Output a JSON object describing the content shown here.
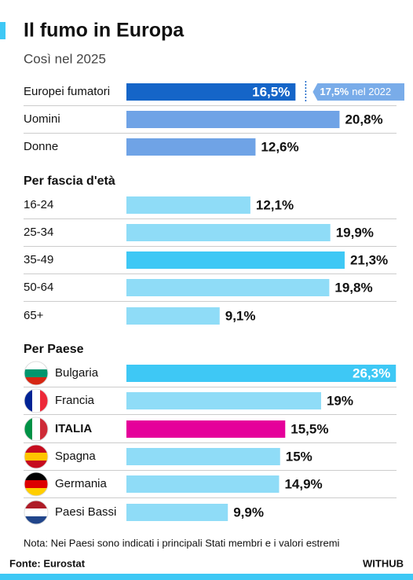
{
  "chart_data": {
    "type": "bar",
    "title": "Il fumo in Europa",
    "subtitle": "Così nel 2025",
    "sections": [
      {
        "categories": [
          "Europei fumatori",
          "Uomini",
          "Donne"
        ],
        "values": [
          16.5,
          20.8,
          12.6
        ],
        "value_labels": [
          "16,5%",
          "20,8%",
          "12,6%"
        ],
        "colors": [
          "#1565c8",
          "#6fa3e6",
          "#6fa3e6"
        ]
      },
      {
        "title": "Per fascia d'età",
        "categories": [
          "16-24",
          "25-34",
          "35-49",
          "50-64",
          "65+"
        ],
        "values": [
          12.1,
          19.9,
          21.3,
          19.8,
          9.1
        ],
        "value_labels": [
          "12,1%",
          "19,9%",
          "21,3%",
          "19,8%",
          "9,1%"
        ],
        "colors": [
          "#8fdcf7",
          "#8fdcf7",
          "#3ec8f5",
          "#8fdcf7",
          "#8fdcf7"
        ]
      },
      {
        "title": "Per Paese",
        "categories": [
          "Bulgaria",
          "Francia",
          "ITALIA",
          "Spagna",
          "Germania",
          "Paesi Bassi"
        ],
        "values": [
          26.3,
          19,
          15.5,
          15,
          14.9,
          9.9
        ],
        "value_labels": [
          "26,3%",
          "19%",
          "15,5%",
          "15%",
          "14,9%",
          "9,9%"
        ],
        "colors": [
          "#3ec8f5",
          "#8fdcf7",
          "#e5009a",
          "#8fdcf7",
          "#8fdcf7",
          "#8fdcf7"
        ]
      }
    ],
    "reference": {
      "value": 17.5,
      "value_label": "17,5%",
      "note": "nel 2022"
    },
    "footnote": "Nota: Nei Paesi sono indicati i principali Stati membri e i valori estremi",
    "source": "Fonte: Eurostat",
    "brand": "WITHUB"
  }
}
